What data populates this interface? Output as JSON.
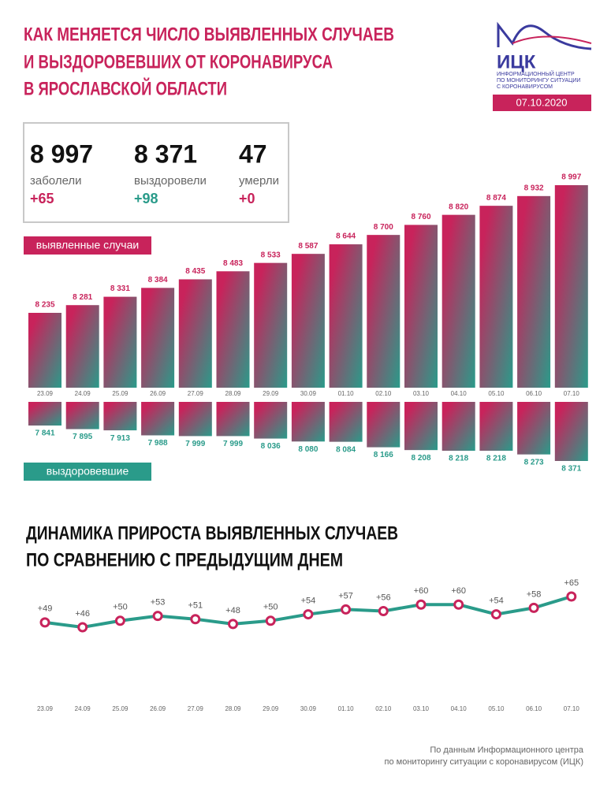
{
  "header": {
    "title": [
      "КАК МЕНЯЕТСЯ ЧИСЛО ВЫЯВЛЕННЫХ СЛУЧАЕВ",
      "И ВЫЗДОРОВЕВШИХ ОТ КОРОНАВИРУСА",
      "В ЯРОСЛАВСКОЙ ОБЛАСТИ"
    ],
    "logo": "ИЦК",
    "logo_text": [
      "ИНФОРМАЦИОННЫЙ ЦЕНТР",
      "ПО МОНИТОРИНГУ СИТУАЦИИ",
      "С КОРОНАВИРУСОМ"
    ],
    "date": "07.10.2020"
  },
  "stats": [
    {
      "value": "8 997",
      "label": "заболели",
      "change": "+65"
    },
    {
      "value": "8 371",
      "label": "выздоровели",
      "change": "+98"
    },
    {
      "value": "47",
      "label": "умерли",
      "change": "+0"
    }
  ],
  "chart_data": [
    {
      "type": "bar",
      "gradient": [
        "#c8235b",
        "#2a9b8a"
      ],
      "categories": [
        "23.09",
        "24.09",
        "25.09",
        "26.09",
        "27.09",
        "28.09",
        "29.09",
        "30.09",
        "01.10",
        "02.10",
        "03.10",
        "04.10",
        "05.10",
        "06.10",
        "07.10"
      ],
      "series": [
        {
          "name": "выявленные случаи",
          "color": "#c8235b",
          "values": [
            8235,
            8281,
            8331,
            8384,
            8435,
            8483,
            8533,
            8587,
            8644,
            8700,
            8760,
            8820,
            8874,
            8932,
            8997
          ],
          "value_labels": [
            "8 235",
            "8 281",
            "8 331",
            "8 384",
            "8 435",
            "8 483",
            "8 533",
            "8 587",
            "8 644",
            "8 700",
            "8 760",
            "8 820",
            "8 874",
            "8 932",
            "8 997"
          ]
        },
        {
          "name": "выздоровевшие",
          "color": "#2a9b8a",
          "values": [
            7841,
            7895,
            7913,
            7988,
            7999,
            7999,
            8036,
            8080,
            8084,
            8166,
            8208,
            8218,
            8218,
            8273,
            8371
          ],
          "value_labels": [
            "7 841",
            "7 895",
            "7 913",
            "7 988",
            "7 999",
            "7 999",
            "8 036",
            "8 080",
            "8 084",
            "8 166",
            "8 208",
            "8 218",
            "8 218",
            "8 273",
            "8 371"
          ]
        }
      ]
    },
    {
      "type": "line",
      "title": [
        "ДИНАМИКА ПРИРОСТА ВЫЯВЛЕННЫХ СЛУЧАЕВ",
        "ПО СРАВНЕНИЮ С ПРЕДЫДУЩИМ ДНЕМ"
      ],
      "color": "#2a9b8a",
      "marker_color": "#c8235b",
      "categories": [
        "23.09",
        "24.09",
        "25.09",
        "26.09",
        "27.09",
        "28.09",
        "29.09",
        "30.09",
        "01.10",
        "02.10",
        "03.10",
        "04.10",
        "05.10",
        "06.10",
        "07.10"
      ],
      "values": [
        49,
        46,
        50,
        53,
        51,
        48,
        50,
        54,
        57,
        56,
        60,
        60,
        54,
        58,
        65
      ],
      "value_labels": [
        "+49",
        "+46",
        "+50",
        "+53",
        "+51",
        "+48",
        "+50",
        "+54",
        "+57",
        "+56",
        "+60",
        "+60",
        "+54",
        "+58",
        "+65"
      ]
    }
  ],
  "source": [
    "По данным Информационного центра",
    "по мониторингу ситуации с коронавирусом (ИЦК)"
  ]
}
